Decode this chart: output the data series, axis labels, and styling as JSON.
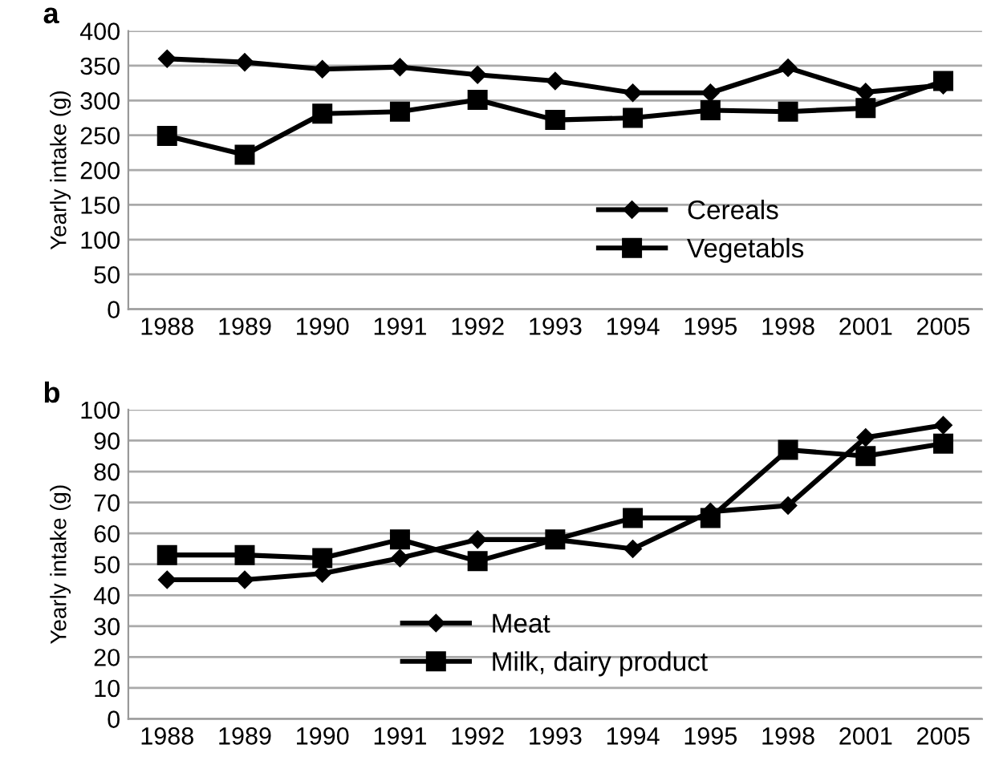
{
  "chart_data": [
    {
      "type": "line",
      "title": "a",
      "ylabel": "Yearly intake (g)",
      "categories": [
        "1988",
        "1989",
        "1990",
        "1991",
        "1992",
        "1993",
        "1994",
        "1995",
        "1998",
        "2001",
        "2005"
      ],
      "series": [
        {
          "name": "Cereals",
          "color": "#000000",
          "marker": "diamond",
          "values": [
            360,
            355,
            345,
            348,
            337,
            328,
            311,
            311,
            347,
            312,
            322
          ]
        },
        {
          "name": "Vegetabls",
          "color": "#000000",
          "marker": "square",
          "values": [
            249,
            222,
            281,
            284,
            301,
            272,
            275,
            286,
            284,
            289,
            328
          ]
        }
      ],
      "ylim": [
        0,
        400
      ],
      "yticks": [
        0,
        50,
        100,
        150,
        200,
        250,
        300,
        350,
        400
      ],
      "grid": "y",
      "legend": "bottom right"
    },
    {
      "type": "line",
      "title": "b",
      "ylabel": "Yearly intake (g)",
      "categories": [
        "1988",
        "1989",
        "1990",
        "1991",
        "1992",
        "1993",
        "1994",
        "1995",
        "1998",
        "2001",
        "2005"
      ],
      "series": [
        {
          "name": "Meat",
          "color": "#000000",
          "marker": "diamond",
          "values": [
            45,
            45,
            47,
            52,
            58,
            58,
            55,
            67,
            69,
            91,
            95
          ]
        },
        {
          "name": "Milk, dairy product",
          "color": "#000000",
          "marker": "square",
          "values": [
            53,
            53,
            52,
            58,
            51,
            58,
            65,
            65,
            87,
            85,
            89
          ]
        }
      ],
      "ylim": [
        0,
        100
      ],
      "yticks": [
        0,
        10,
        20,
        30,
        40,
        50,
        60,
        70,
        80,
        90,
        100
      ],
      "grid": "y",
      "legend": "bottom"
    }
  ]
}
